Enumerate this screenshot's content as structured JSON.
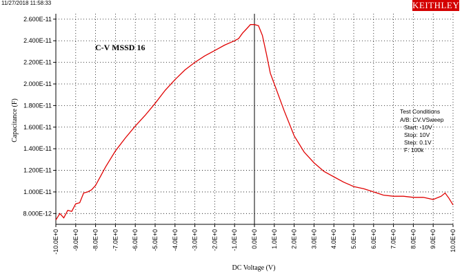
{
  "header": {
    "timestamp": "11/27/2018 11:58:33",
    "brand": "KEITHLEY",
    "brand_color": "#d40000"
  },
  "chart_data": {
    "type": "line",
    "title": "C-V MSSD 16",
    "xlabel": "DC Voltage (V)",
    "ylabel": "Capacitance (F)",
    "xlim": [
      -10,
      10
    ],
    "ylim": [
      7e-12,
      2.65e-11
    ],
    "x_ticks": [
      -10,
      -9,
      -8,
      -7,
      -6,
      -5,
      -4,
      -3,
      -2,
      -1,
      0,
      1,
      2,
      3,
      4,
      5,
      6,
      7,
      8,
      9,
      10
    ],
    "x_tick_labels": [
      "-10.0E+0",
      "-9.0E+0",
      "-8.0E+0",
      "-7.0E+0",
      "-6.0E+0",
      "-5.0E+0",
      "-4.0E+0",
      "-3.0E+0",
      "-2.0E+0",
      "-1.0E+0",
      "0.0E+0",
      "1.0E+0",
      "2.0E+0",
      "3.0E+0",
      "4.0E+0",
      "5.0E+0",
      "6.0E+0",
      "7.0E+0",
      "8.0E+0",
      "9.0E+0",
      "10.0E+0"
    ],
    "y_ticks": [
      8e-12,
      1e-11,
      1.2e-11,
      1.4e-11,
      1.6e-11,
      1.8e-11,
      2e-11,
      2.2e-11,
      2.4e-11,
      2.6e-11
    ],
    "y_tick_labels": [
      "8.000E-12",
      "1.000E-11",
      "1.200E-11",
      "1.400E-11",
      "1.600E-11",
      "1.800E-11",
      "2.000E-11",
      "2.200E-11",
      "2.400E-11",
      "2.600E-11"
    ],
    "grid": true,
    "line_color": "#e00000",
    "series": [
      {
        "x": [
          -10.0,
          -9.8,
          -9.6,
          -9.4,
          -9.2,
          -9.0,
          -8.8,
          -8.6,
          -8.4,
          -8.2,
          -8.0,
          -7.5,
          -7.0,
          -6.5,
          -6.0,
          -5.5,
          -5.0,
          -4.5,
          -4.0,
          -3.5,
          -3.0,
          -2.5,
          -2.0,
          -1.5,
          -1.0,
          -0.8,
          -0.6,
          -0.4,
          -0.2,
          0.0,
          0.2,
          0.4,
          0.6,
          0.8,
          1.0,
          1.5,
          2.0,
          2.5,
          3.0,
          3.5,
          4.0,
          4.5,
          5.0,
          5.5,
          6.0,
          6.5,
          7.0,
          7.5,
          8.0,
          8.5,
          9.0,
          9.4,
          9.6,
          9.8,
          10.0
        ],
        "y": [
          7.4e-12,
          8e-12,
          7.6e-12,
          8.3e-12,
          8.2e-12,
          8.9e-12,
          9e-12,
          9.9e-12,
          1e-11,
          1.02e-11,
          1.06e-11,
          1.23e-11,
          1.38e-11,
          1.5e-11,
          1.61e-11,
          1.71e-11,
          1.82e-11,
          1.94e-11,
          2.04e-11,
          2.13e-11,
          2.2e-11,
          2.26e-11,
          2.31e-11,
          2.36e-11,
          2.4e-11,
          2.42e-11,
          2.47e-11,
          2.51e-11,
          2.55e-11,
          2.55e-11,
          2.54e-11,
          2.45e-11,
          2.28e-11,
          2.1e-11,
          2e-11,
          1.75e-11,
          1.52e-11,
          1.37e-11,
          1.27e-11,
          1.19e-11,
          1.14e-11,
          1.09e-11,
          1.05e-11,
          1.03e-11,
          1e-11,
          9.7e-12,
          9.6e-12,
          9.6e-12,
          9.5e-12,
          9.5e-12,
          9.3e-12,
          9.6e-12,
          9.9e-12,
          9.4e-12,
          8.8e-12
        ]
      }
    ]
  },
  "test_conditions": {
    "heading": "Test Conditions",
    "lines": [
      "A/B: CV.VSweep",
      "Start: -10V",
      "Stop: 10V",
      "Step: 0.1V",
      "F: 100k"
    ]
  }
}
